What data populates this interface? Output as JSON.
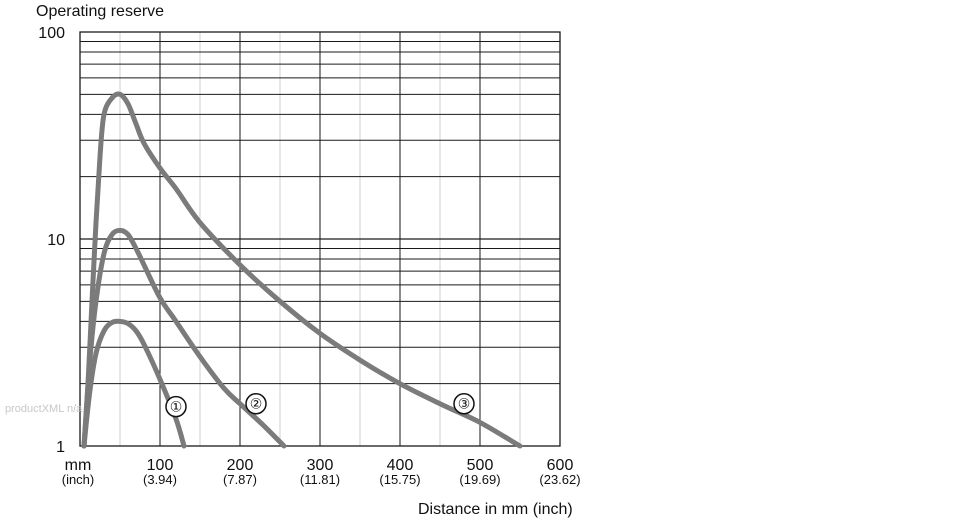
{
  "chart_data": {
    "type": "line",
    "ylabel": "Operating reserve",
    "xlabel": "Distance in mm (inch)",
    "yscale": "log",
    "ylim": [
      1,
      100
    ],
    "xlim": [
      0,
      600
    ],
    "grid": true,
    "x_unit_main": "mm",
    "x_unit_sub": "(inch)",
    "x_ticks": [
      {
        "value": 100,
        "label": "100",
        "sub": "(3.94)"
      },
      {
        "value": 200,
        "label": "200",
        "sub": "(7.87)"
      },
      {
        "value": 300,
        "label": "300",
        "sub": "(11.81)"
      },
      {
        "value": 400,
        "label": "400",
        "sub": "(15.75)"
      },
      {
        "value": 500,
        "label": "500",
        "sub": "(19.69)"
      },
      {
        "value": 600,
        "label": "600",
        "sub": "(23.62)"
      }
    ],
    "y_ticks": [
      {
        "value": 1,
        "label": "1"
      },
      {
        "value": 10,
        "label": "10"
      },
      {
        "value": 100,
        "label": "100"
      }
    ],
    "series": [
      {
        "marker": "①",
        "label_at": {
          "x": 120,
          "y": 1.55
        },
        "x": [
          5,
          12,
          20,
          30,
          40,
          50,
          60,
          70,
          80,
          100,
          120,
          130
        ],
        "y": [
          1.0,
          1.8,
          2.8,
          3.6,
          3.95,
          4.0,
          3.9,
          3.6,
          3.1,
          2.1,
          1.35,
          1.0
        ]
      },
      {
        "marker": "②",
        "label_at": {
          "x": 220,
          "y": 1.6
        },
        "x": [
          5,
          12,
          20,
          30,
          40,
          50,
          60,
          70,
          80,
          100,
          120,
          150,
          180,
          200,
          230,
          255
        ],
        "y": [
          1.0,
          2.5,
          5.0,
          8.5,
          10.5,
          11.0,
          10.5,
          9.0,
          7.5,
          5.2,
          4.0,
          2.7,
          1.9,
          1.6,
          1.25,
          1.0
        ]
      },
      {
        "marker": "③",
        "label_at": {
          "x": 480,
          "y": 1.6
        },
        "x": [
          5,
          10,
          15,
          20,
          25,
          30,
          40,
          50,
          60,
          70,
          80,
          100,
          120,
          150,
          200,
          250,
          300,
          350,
          400,
          450,
          500,
          550
        ],
        "y": [
          1.0,
          2.0,
          5.0,
          12.0,
          25.0,
          40.0,
          48.0,
          50.0,
          45.0,
          36.0,
          29.0,
          22.0,
          17.5,
          12.0,
          7.5,
          5.0,
          3.5,
          2.6,
          2.0,
          1.6,
          1.3,
          1.0
        ]
      }
    ]
  },
  "style": {
    "curve_color": "#7b7b7b",
    "grid_color": "#1a1a1a",
    "grid_light_color": "#cfcfcf"
  },
  "watermark": "productXML n/a"
}
